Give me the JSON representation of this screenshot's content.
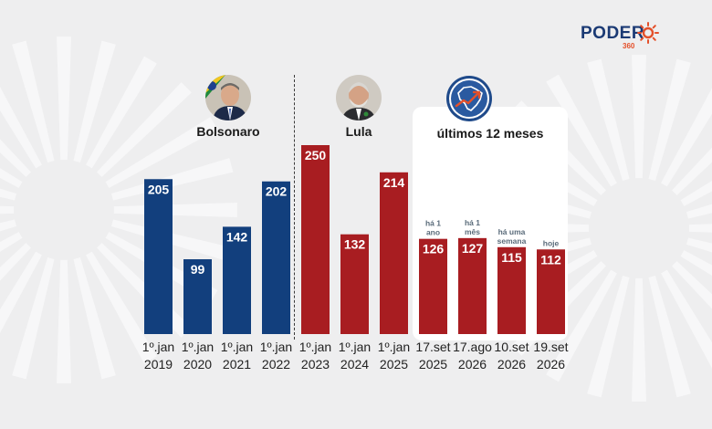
{
  "brand": {
    "name": "PODER",
    "suffix": "360"
  },
  "people": [
    {
      "name": "Bolsonaro",
      "avatar_icon": "bolsonaro-portrait"
    },
    {
      "name": "Lula",
      "avatar_icon": "lula-portrait"
    }
  ],
  "recent_title": "últimos 12 meses",
  "colors": {
    "bolsonaro": "#123f7d",
    "lula": "#a81d21",
    "background": "#eeeeef",
    "brand_blue": "#1b3a74",
    "brand_orange": "#e4502a"
  },
  "chart_data": {
    "type": "bar",
    "categories": [
      [
        "1º.jan",
        "2019"
      ],
      [
        "1º.jan",
        "2020"
      ],
      [
        "1º.jan",
        "2021"
      ],
      [
        "1º.jan",
        "2022"
      ],
      [
        "1º.jan",
        "2023"
      ],
      [
        "1º.jan",
        "2024"
      ],
      [
        "1º.jan",
        "2025"
      ],
      [
        "17.set",
        "2025"
      ],
      [
        "17.ago",
        "2026"
      ],
      [
        "10.set",
        "2026"
      ],
      [
        "19.set",
        "2026"
      ]
    ],
    "values": [
      205,
      99,
      142,
      202,
      250,
      132,
      214,
      126,
      127,
      115,
      112
    ],
    "groups": [
      "Bolsonaro",
      "Bolsonaro",
      "Bolsonaro",
      "Bolsonaro",
      "Lula",
      "Lula",
      "Lula",
      "Lula",
      "Lula",
      "Lula",
      "Lula"
    ],
    "notes": [
      null,
      null,
      null,
      null,
      null,
      null,
      null,
      [
        "há 1",
        "ano"
      ],
      [
        "há 1",
        "mês"
      ],
      [
        "há uma",
        "semana"
      ],
      [
        "hoje"
      ]
    ],
    "ylim": [
      0,
      250
    ],
    "grid": false,
    "title": "",
    "xlabel": "",
    "ylabel": ""
  }
}
